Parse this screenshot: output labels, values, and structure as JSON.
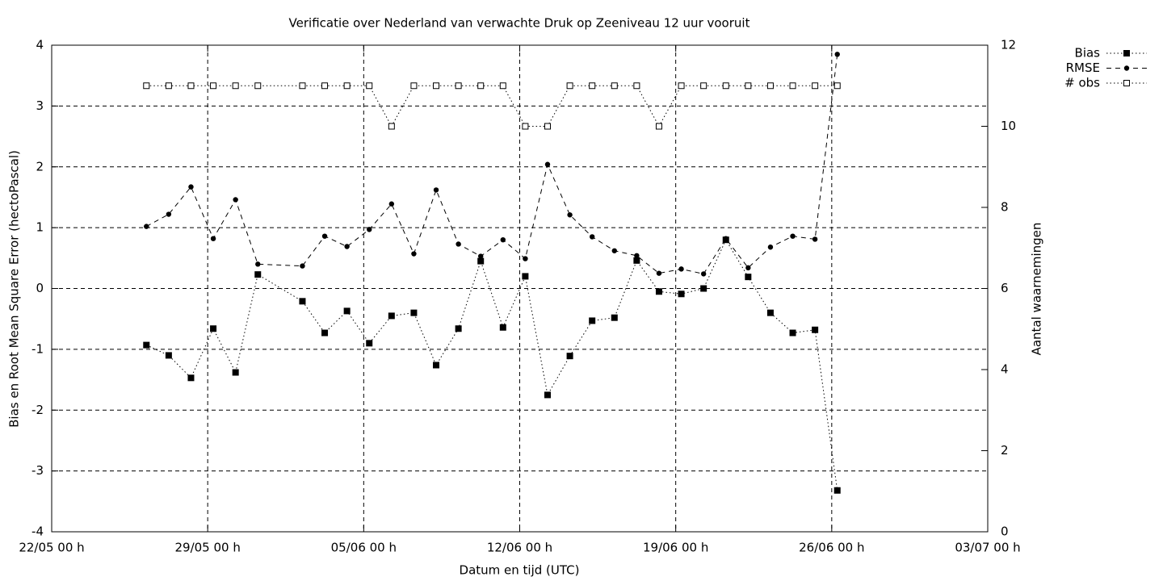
{
  "chart_data": {
    "type": "line",
    "title": "Verificatie over Nederland van verwachte Druk op Zeeniveau 12 uur vooruit",
    "x_label": "Datum en tijd (UTC)",
    "y_label": "Bias en Root Mean Square Error (hectoPascal)",
    "y2_label": "Aantal waarnemingen",
    "x": [
      "26/05 06 h",
      "27/05 06 h",
      "28/05 06 h",
      "29/05 06 h",
      "30/05 06 h",
      "31/05 06 h",
      "02/06 06 h",
      "03/06 06 h",
      "04/06 06 h",
      "05/06 06 h",
      "06/06 06 h",
      "07/06 06 h",
      "08/06 06 h",
      "09/06 06 h",
      "10/06 06 h",
      "11/06 06 h",
      "12/06 06 h",
      "13/06 06 h",
      "14/06 06 h",
      "15/06 06 h",
      "16/06 06 h",
      "17/06 06 h",
      "18/06 06 h",
      "19/06 06 h",
      "20/06 06 h",
      "21/06 06 h",
      "22/06 06 h",
      "23/06 06 h",
      "24/06 06 h",
      "25/06 06 h",
      "26/06 06 h"
    ],
    "series": [
      {
        "name": "Bias",
        "color": "#000000",
        "marker": "filled-square",
        "dash": "dotted",
        "values": [
          -0.93,
          -1.1,
          -1.47,
          -0.66,
          -1.38,
          0.23,
          -0.21,
          -0.73,
          -0.37,
          -0.9,
          -0.45,
          -0.4,
          -1.26,
          -0.66,
          0.45,
          -0.64,
          0.2,
          -1.75,
          -1.11,
          -0.53,
          -0.48,
          0.46,
          -0.05,
          -0.09,
          0.0,
          0.8,
          0.19,
          -0.4,
          -0.73,
          -0.68,
          -3.32
        ]
      },
      {
        "name": "RMSE",
        "color": "#000000",
        "marker": "filled-circle",
        "dash": "dashed",
        "values": [
          1.02,
          1.22,
          1.67,
          0.82,
          1.46,
          0.4,
          0.37,
          0.86,
          0.69,
          0.97,
          1.39,
          0.57,
          1.62,
          0.73,
          0.53,
          0.8,
          0.49,
          2.04,
          1.21,
          0.85,
          0.62,
          0.54,
          0.25,
          0.32,
          0.24,
          0.82,
          0.34,
          0.68,
          0.86,
          0.81,
          3.85
        ]
      },
      {
        "name": "# obs",
        "color": "#000000",
        "marker": "open-square",
        "dash": "dotted",
        "axis": "y2",
        "values": [
          11,
          11,
          11,
          11,
          11,
          11,
          11,
          11,
          11,
          11,
          10,
          11,
          11,
          11,
          11,
          11,
          10,
          10,
          11,
          11,
          11,
          11,
          10,
          11,
          11,
          11,
          11,
          11,
          11,
          11,
          11
        ]
      }
    ],
    "xlim": [
      "22/05 00 h",
      "03/07 00 h"
    ],
    "xticks": [
      "22/05 00 h",
      "29/05 00 h",
      "05/06 00 h",
      "12/06 00 h",
      "19/06 00 h",
      "26/06 00 h",
      "03/07 00 h"
    ],
    "ylim": [
      -4,
      4
    ],
    "yticks": [
      -4,
      -3,
      -2,
      -1,
      0,
      1,
      2,
      3,
      4
    ],
    "y2lim": [
      0,
      12
    ],
    "y2ticks": [
      0,
      2,
      4,
      6,
      8,
      10,
      12
    ],
    "grid": true,
    "legend": "top-right-outside"
  }
}
